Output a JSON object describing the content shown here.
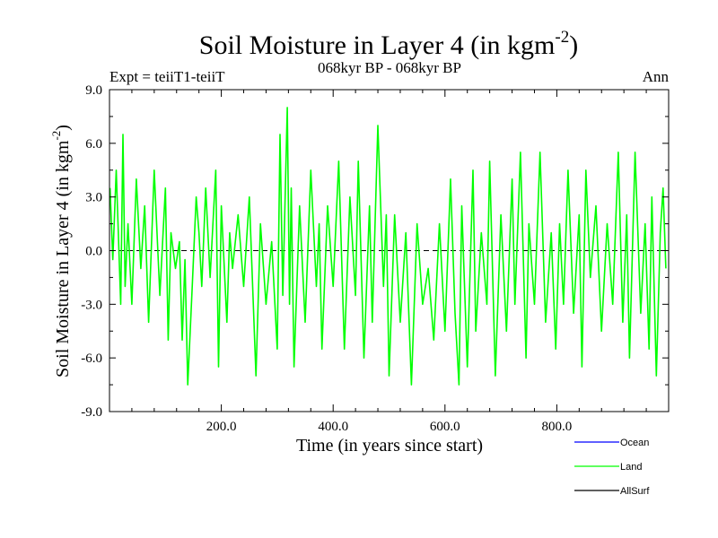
{
  "colors": {
    "ocean": "#0000ff",
    "land": "#00ff00",
    "allsurf": "#000000",
    "axis": "#000000",
    "zero_line": "#000000"
  },
  "chart_data": {
    "type": "line",
    "title": "Soil Moisture in Layer 4 (in kgm",
    "title_sup": "-2",
    "title_close": ")",
    "subtitle_left": "Expt = teiiT1-teiiT",
    "subtitle_center": "068kyr BP - 068kyr BP",
    "subtitle_right": "Ann",
    "xlabel": "Time (in years since start)",
    "ylabel": "Soil Moisture in Layer 4 (in kgm",
    "ylabel_sup": "-2",
    "ylabel_close": ")",
    "xlim": [
      0,
      1000
    ],
    "ylim": [
      -9.0,
      9.0
    ],
    "xticks": [
      200,
      400,
      600,
      800
    ],
    "xtick_labels": [
      "200.0",
      "400.0",
      "600.0",
      "800.0"
    ],
    "yticks": [
      -9,
      -6,
      -3,
      0,
      3,
      6,
      9
    ],
    "ytick_labels": [
      "-9.0",
      "-6.0",
      "-3.0",
      "0.0",
      "3.0",
      "6.0",
      "9.0"
    ],
    "zero_line": true,
    "legend_position": "bottom-right",
    "series": [
      {
        "name": "Ocean",
        "values": []
      },
      {
        "name": "Land",
        "x": [
          1,
          6,
          12,
          20,
          24,
          28,
          33,
          40,
          48,
          56,
          63,
          70,
          80,
          90,
          100,
          105,
          110,
          118,
          125,
          130,
          135,
          140,
          148,
          155,
          160,
          165,
          172,
          180,
          190,
          195,
          200,
          210,
          215,
          220,
          230,
          240,
          250,
          262,
          270,
          280,
          290,
          300,
          305,
          310,
          318,
          322,
          325,
          330,
          340,
          350,
          360,
          370,
          375,
          380,
          390,
          400,
          410,
          420,
          430,
          440,
          445,
          455,
          465,
          470,
          480,
          490,
          495,
          500,
          510,
          520,
          530,
          540,
          550,
          560,
          570,
          580,
          590,
          600,
          610,
          618,
          625,
          630,
          640,
          650,
          655,
          665,
          675,
          680,
          690,
          700,
          710,
          720,
          725,
          735,
          745,
          750,
          760,
          770,
          780,
          790,
          798,
          805,
          812,
          820,
          830,
          840,
          845,
          852,
          860,
          870,
          880,
          890,
          900,
          910,
          918,
          925,
          930,
          940,
          950,
          958,
          965,
          970,
          978,
          985,
          990,
          995
        ],
        "values": [
          3.5,
          -0.5,
          4.5,
          -3.0,
          6.5,
          -2.0,
          1.5,
          -3.0,
          4.0,
          -1.0,
          2.5,
          -4.0,
          4.5,
          -2.5,
          3.5,
          -5.0,
          1.0,
          -1.0,
          0.5,
          -5.0,
          -0.5,
          -7.5,
          -2.0,
          3.0,
          1.0,
          -2.0,
          3.5,
          -1.5,
          4.5,
          -6.5,
          2.5,
          -4.0,
          1.0,
          -1.0,
          2.0,
          -2.0,
          3.0,
          -7.0,
          1.5,
          -3.0,
          0.5,
          -5.5,
          6.5,
          -2.5,
          8.0,
          -3.0,
          3.5,
          -6.5,
          2.5,
          -4.0,
          4.5,
          -2.0,
          1.5,
          -5.5,
          2.5,
          -2.0,
          5.0,
          -5.5,
          3.0,
          -2.5,
          5.0,
          -6.0,
          2.5,
          -4.0,
          7.0,
          -2.0,
          2.0,
          -7.0,
          2.0,
          -4.0,
          1.0,
          -7.5,
          1.5,
          -3.0,
          -1.0,
          -5.0,
          1.5,
          -4.5,
          4.0,
          -3.5,
          -7.5,
          2.5,
          -6.5,
          4.5,
          -4.5,
          1.0,
          -3.0,
          5.0,
          -7.0,
          2.0,
          -4.5,
          4.0,
          -3.0,
          5.5,
          -6.0,
          1.5,
          -3.0,
          5.5,
          -4.0,
          1.0,
          -5.5,
          1.5,
          -3.0,
          4.5,
          -3.5,
          2.0,
          -6.5,
          4.5,
          -1.5,
          2.5,
          -4.5,
          1.5,
          -3.0,
          5.5,
          -4.0,
          2.0,
          -6.0,
          5.5,
          -3.5,
          1.5,
          -5.5,
          3.0,
          -7.0,
          1.0,
          3.5,
          -1.0
        ]
      },
      {
        "name": "AllSurf",
        "values": []
      }
    ]
  }
}
